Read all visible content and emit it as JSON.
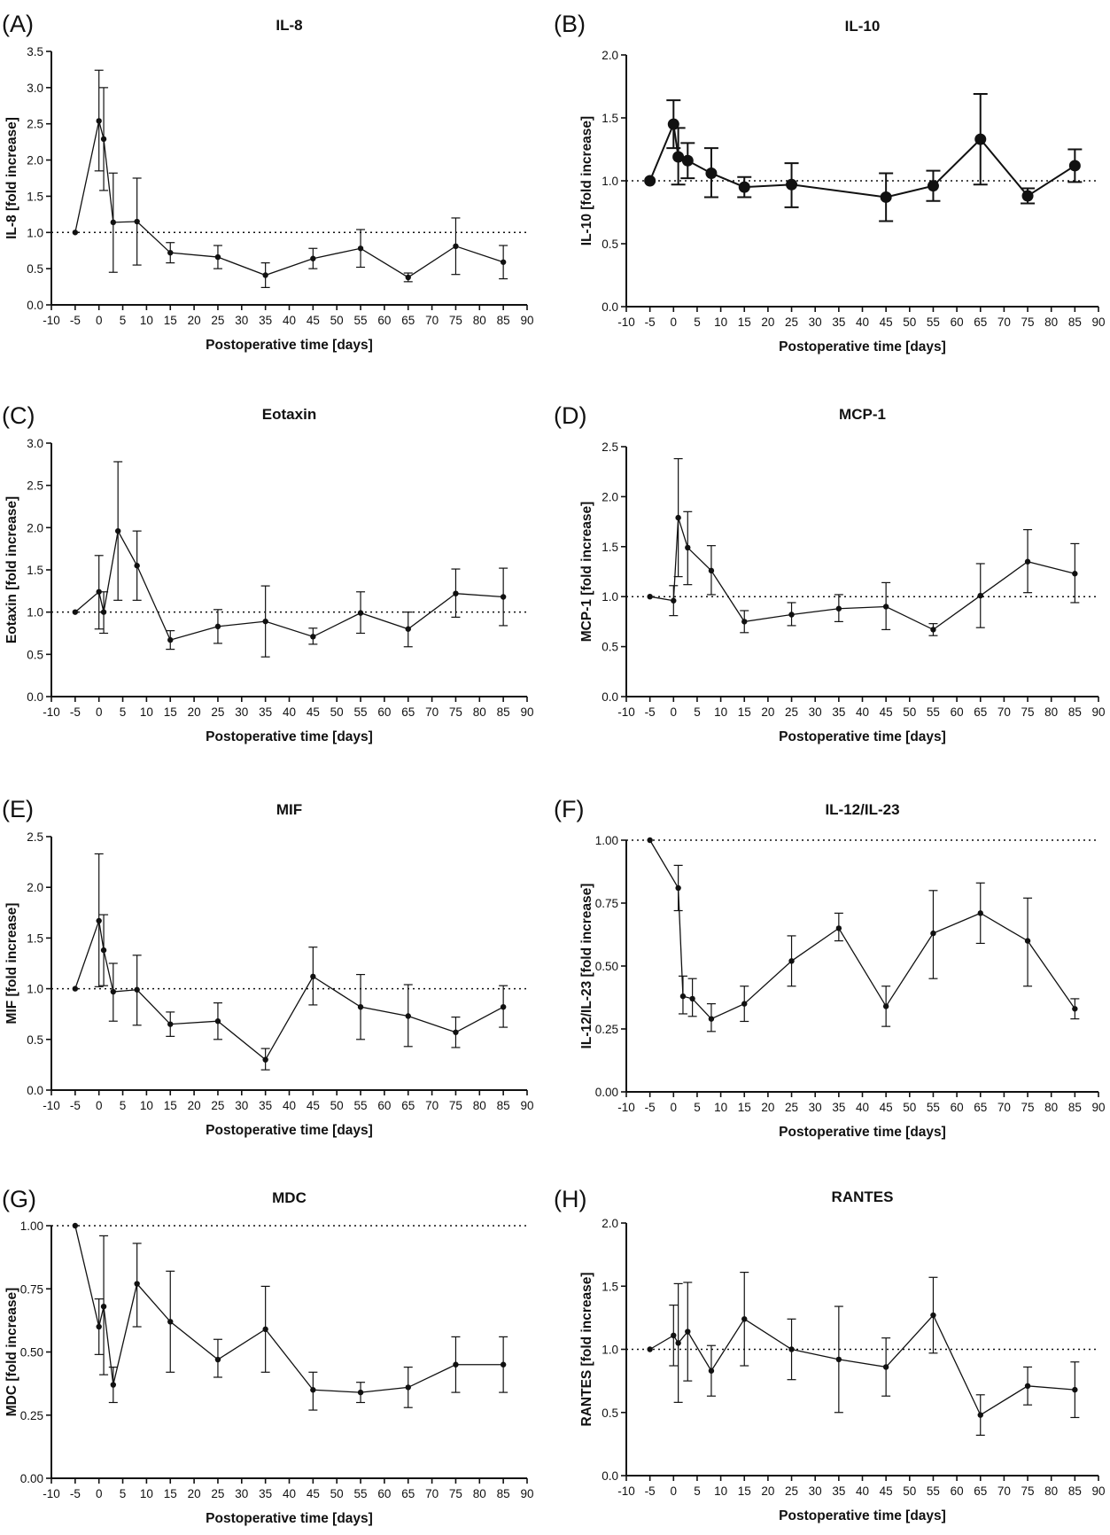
{
  "figure": {
    "background": "#ffffff",
    "line_color": "#111111"
  },
  "chart_data": [
    {
      "panel": "(A)",
      "type": "line",
      "title": "IL-8",
      "xlabel": "Postoperative time [days]",
      "ylabel": "IL-8 [fold increase]",
      "xlim": [
        -10,
        90
      ],
      "xticks": [
        -10,
        -5,
        0,
        5,
        10,
        15,
        20,
        25,
        30,
        35,
        40,
        45,
        50,
        55,
        60,
        65,
        70,
        75,
        80,
        85,
        90
      ],
      "xtick_labels": [
        "-10",
        "-5",
        "0",
        "5",
        "10",
        "15",
        "20",
        "25",
        "30",
        "35",
        "40",
        "45",
        "50",
        "55",
        "60",
        "65",
        "70",
        "75",
        "80",
        "85",
        "90"
      ],
      "ylim": [
        0,
        3.5
      ],
      "yticks": [
        0,
        0.5,
        1,
        1.5,
        2,
        2.5,
        3,
        3.5
      ],
      "ytick_labels": [
        "0.0",
        "0.5",
        "1.0",
        "1.5",
        "2.0",
        "2.5",
        "3.0",
        "3.5"
      ],
      "reference_line": 1.0,
      "grid": false,
      "marker": "small",
      "x": [
        -5,
        0,
        1,
        3,
        8,
        15,
        25,
        35,
        45,
        55,
        65,
        75,
        85
      ],
      "y": [
        1.0,
        2.54,
        2.29,
        1.14,
        1.15,
        0.72,
        0.66,
        0.41,
        0.64,
        0.78,
        0.38,
        0.81,
        0.59
      ],
      "err_low": [
        1.0,
        1.85,
        1.58,
        0.45,
        0.55,
        0.58,
        0.5,
        0.24,
        0.5,
        0.52,
        0.32,
        0.42,
        0.36
      ],
      "err_high": [
        1.0,
        3.24,
        3.0,
        1.82,
        1.75,
        0.86,
        0.82,
        0.58,
        0.78,
        1.04,
        0.44,
        1.2,
        0.82
      ]
    },
    {
      "panel": "(B)",
      "type": "line",
      "title": "IL-10",
      "xlabel": "Postoperative time [days]",
      "ylabel": "IL-10 [fold increase]",
      "xlim": [
        -10,
        90
      ],
      "xticks": [
        -10,
        -5,
        0,
        5,
        10,
        15,
        20,
        25,
        30,
        35,
        40,
        45,
        50,
        55,
        60,
        65,
        70,
        75,
        80,
        85,
        90
      ],
      "xtick_labels": [
        "-10",
        "-5",
        "0",
        "5",
        "10",
        "15",
        "20",
        "25",
        "30",
        "35",
        "40",
        "45",
        "50",
        "55",
        "60",
        "65",
        "70",
        "75",
        "80",
        "85",
        "90"
      ],
      "ylim": [
        0,
        2.0
      ],
      "yticks": [
        0,
        0.5,
        1,
        1.5,
        2
      ],
      "ytick_labels": [
        "0.0",
        "0.5",
        "1.0",
        "1.5",
        "2.0"
      ],
      "reference_line": 1.0,
      "grid": false,
      "marker": "large",
      "x": [
        -5,
        0,
        1,
        3,
        8,
        15,
        25,
        45,
        55,
        65,
        75,
        85
      ],
      "y": [
        1.0,
        1.45,
        1.19,
        1.16,
        1.06,
        0.95,
        0.97,
        0.87,
        0.96,
        1.33,
        0.88,
        1.12
      ],
      "err_low": [
        1.0,
        1.26,
        0.97,
        1.02,
        0.87,
        0.87,
        0.79,
        0.68,
        0.84,
        0.97,
        0.82,
        0.99
      ],
      "err_high": [
        1.0,
        1.64,
        1.42,
        1.3,
        1.26,
        1.03,
        1.14,
        1.06,
        1.08,
        1.69,
        0.94,
        1.25
      ]
    },
    {
      "panel": "(C)",
      "type": "line",
      "title": "Eotaxin",
      "xlabel": "Postoperative time [days]",
      "ylabel": "Eotaxin [fold increase]",
      "xlim": [
        -10,
        90
      ],
      "xticks": [
        -10,
        -5,
        0,
        5,
        10,
        15,
        20,
        25,
        30,
        35,
        40,
        45,
        50,
        55,
        60,
        65,
        70,
        75,
        80,
        85,
        90
      ],
      "xtick_labels": [
        "-10",
        "-5",
        "0",
        "5",
        "10",
        "15",
        "20",
        "25",
        "30",
        "35",
        "40",
        "45",
        "50",
        "55",
        "60",
        "65",
        "70",
        "75",
        "80",
        "85",
        "90"
      ],
      "ylim": [
        0,
        3.0
      ],
      "yticks": [
        0,
        0.5,
        1,
        1.5,
        2,
        2.5,
        3
      ],
      "ytick_labels": [
        "0.0",
        "0.5",
        "1.0",
        "1.5",
        "2.0",
        "2.5",
        "3.0"
      ],
      "reference_line": 1.0,
      "grid": false,
      "marker": "small",
      "x": [
        -5,
        0,
        1,
        4,
        8,
        15,
        25,
        35,
        45,
        55,
        65,
        75,
        85
      ],
      "y": [
        1.0,
        1.24,
        1.0,
        1.96,
        1.55,
        0.67,
        0.83,
        0.89,
        0.71,
        0.99,
        0.8,
        1.22,
        1.18
      ],
      "err_low": [
        1.0,
        0.8,
        0.75,
        1.14,
        1.14,
        0.56,
        0.63,
        0.47,
        0.62,
        0.75,
        0.59,
        0.94,
        0.84
      ],
      "err_high": [
        1.0,
        1.67,
        1.24,
        2.78,
        1.96,
        0.78,
        1.03,
        1.31,
        0.81,
        1.24,
        1.0,
        1.51,
        1.52
      ]
    },
    {
      "panel": "(D)",
      "type": "line",
      "title": "MCP-1",
      "xlabel": "Postoperative time [days]",
      "ylabel": "MCP-1 [fold increase]",
      "xlim": [
        -10,
        90
      ],
      "xticks": [
        -10,
        -5,
        0,
        5,
        10,
        15,
        20,
        25,
        30,
        35,
        40,
        45,
        50,
        55,
        60,
        65,
        70,
        75,
        80,
        85,
        90
      ],
      "xtick_labels": [
        "-10",
        "-5",
        "0",
        "5",
        "10",
        "15",
        "20",
        "25",
        "30",
        "35",
        "40",
        "45",
        "50",
        "55",
        "60",
        "65",
        "70",
        "75",
        "80",
        "85",
        "90"
      ],
      "ylim": [
        0,
        2.5
      ],
      "yticks": [
        0,
        0.5,
        1,
        1.5,
        2,
        2.5
      ],
      "ytick_labels": [
        "0.0",
        "0.5",
        "1.0",
        "1.5",
        "2.0",
        "2.5"
      ],
      "reference_line": 1.0,
      "grid": false,
      "marker": "small",
      "x": [
        -5,
        0,
        1,
        3,
        8,
        15,
        25,
        35,
        45,
        55,
        65,
        75,
        85
      ],
      "y": [
        1.0,
        0.96,
        1.79,
        1.49,
        1.26,
        0.75,
        0.82,
        0.88,
        0.9,
        0.67,
        1.01,
        1.35,
        1.23
      ],
      "err_low": [
        1.0,
        0.81,
        1.2,
        1.12,
        1.02,
        0.64,
        0.71,
        0.75,
        0.67,
        0.61,
        0.69,
        1.04,
        0.94
      ],
      "err_high": [
        1.0,
        1.11,
        2.38,
        1.85,
        1.51,
        0.86,
        0.94,
        1.02,
        1.14,
        0.73,
        1.33,
        1.67,
        1.53
      ]
    },
    {
      "panel": "(E)",
      "type": "line",
      "title": "MIF",
      "xlabel": "Postoperative time [days]",
      "ylabel": "MIF [fold increase]",
      "xlim": [
        -10,
        90
      ],
      "xticks": [
        -10,
        -5,
        0,
        5,
        10,
        15,
        20,
        25,
        30,
        35,
        40,
        45,
        50,
        55,
        60,
        65,
        70,
        75,
        80,
        85,
        90
      ],
      "xtick_labels": [
        "-10",
        "-5",
        "0",
        "5",
        "10",
        "15",
        "20",
        "25",
        "30",
        "35",
        "40",
        "45",
        "50",
        "55",
        "60",
        "65",
        "70",
        "75",
        "80",
        "85",
        "90"
      ],
      "ylim": [
        0,
        2.5
      ],
      "yticks": [
        0,
        0.5,
        1,
        1.5,
        2,
        2.5
      ],
      "ytick_labels": [
        "0.0",
        "0.5",
        "1.0",
        "1.5",
        "2.0",
        "2.5"
      ],
      "reference_line": 1.0,
      "grid": false,
      "marker": "small",
      "x": [
        -5,
        0,
        1,
        3,
        8,
        15,
        25,
        35,
        45,
        55,
        65,
        75,
        85
      ],
      "y": [
        1.0,
        1.67,
        1.38,
        0.97,
        0.99,
        0.65,
        0.68,
        0.3,
        1.12,
        0.82,
        0.73,
        0.57,
        0.82
      ],
      "err_low": [
        1.0,
        1.02,
        1.03,
        0.68,
        0.64,
        0.53,
        0.5,
        0.2,
        0.84,
        0.5,
        0.43,
        0.42,
        0.62
      ],
      "err_high": [
        1.0,
        2.33,
        1.73,
        1.25,
        1.33,
        0.77,
        0.86,
        0.41,
        1.41,
        1.14,
        1.04,
        0.72,
        1.03
      ]
    },
    {
      "panel": "(F)",
      "type": "line",
      "title": "IL-12/IL-23",
      "xlabel": "Postoperative time [days]",
      "ylabel": "IL-12/IL-23 [fold increase]",
      "xlim": [
        -10,
        90
      ],
      "xticks": [
        -10,
        -5,
        0,
        5,
        10,
        15,
        20,
        25,
        30,
        35,
        40,
        45,
        50,
        55,
        60,
        65,
        70,
        75,
        80,
        85,
        90
      ],
      "xtick_labels": [
        "-10",
        "-5",
        "0",
        "5",
        "10",
        "15",
        "20",
        "25",
        "30",
        "35",
        "40",
        "45",
        "50",
        "55",
        "60",
        "65",
        "70",
        "75",
        "80",
        "85",
        "90"
      ],
      "ylim": [
        0,
        1.0
      ],
      "yticks": [
        0,
        0.25,
        0.5,
        0.75,
        1
      ],
      "ytick_labels": [
        "0.00",
        "0.25",
        "0.50",
        "0.75",
        "1.00"
      ],
      "reference_line": 1.0,
      "grid": false,
      "marker": "small",
      "x": [
        -5,
        1,
        2,
        4,
        8,
        15,
        25,
        35,
        45,
        55,
        65,
        75,
        85
      ],
      "y": [
        1.0,
        0.81,
        0.38,
        0.37,
        0.29,
        0.35,
        0.52,
        0.65,
        0.34,
        0.63,
        0.71,
        0.6,
        0.33
      ],
      "err_low": [
        1.0,
        0.72,
        0.31,
        0.3,
        0.24,
        0.28,
        0.42,
        0.6,
        0.26,
        0.45,
        0.59,
        0.42,
        0.29
      ],
      "err_high": [
        1.0,
        0.9,
        0.46,
        0.45,
        0.35,
        0.42,
        0.62,
        0.71,
        0.42,
        0.8,
        0.83,
        0.77,
        0.37
      ]
    },
    {
      "panel": "(G)",
      "type": "line",
      "title": "MDC",
      "xlabel": "Postoperative time [days]",
      "ylabel": "MDC [fold increase]",
      "xlim": [
        -10,
        90
      ],
      "xticks": [
        -10,
        -5,
        0,
        5,
        10,
        15,
        20,
        25,
        30,
        35,
        40,
        45,
        50,
        55,
        60,
        65,
        70,
        75,
        80,
        85,
        90
      ],
      "xtick_labels": [
        "-10",
        "-5",
        "0",
        "5",
        "10",
        "15",
        "20",
        "25",
        "30",
        "35",
        "40",
        "45",
        "50",
        "55",
        "60",
        "65",
        "70",
        "75",
        "80",
        "85",
        "90"
      ],
      "ylim": [
        0,
        1.0
      ],
      "yticks": [
        0,
        0.25,
        0.5,
        0.75,
        1
      ],
      "ytick_labels": [
        "0.00",
        "0.25",
        "0.50",
        "0.75",
        "1.00"
      ],
      "reference_line": 1.0,
      "grid": false,
      "marker": "small",
      "x": [
        -5,
        0,
        1,
        3,
        8,
        15,
        25,
        35,
        45,
        55,
        65,
        75,
        85
      ],
      "y": [
        1.0,
        0.6,
        0.68,
        0.37,
        0.77,
        0.62,
        0.47,
        0.59,
        0.35,
        0.34,
        0.36,
        0.45,
        0.45
      ],
      "err_low": [
        1.0,
        0.49,
        0.41,
        0.3,
        0.6,
        0.42,
        0.4,
        0.42,
        0.27,
        0.3,
        0.28,
        0.34,
        0.34
      ],
      "err_high": [
        1.0,
        0.71,
        0.96,
        0.44,
        0.93,
        0.82,
        0.55,
        0.76,
        0.42,
        0.38,
        0.44,
        0.56,
        0.56
      ]
    },
    {
      "panel": "(H)",
      "type": "line",
      "title": "RANTES",
      "xlabel": "Postoperative time [days]",
      "ylabel": "RANTES [fold increase]",
      "xlim": [
        -10,
        90
      ],
      "xticks": [
        -10,
        -5,
        0,
        5,
        10,
        15,
        20,
        25,
        30,
        35,
        40,
        45,
        50,
        55,
        60,
        65,
        70,
        75,
        80,
        85,
        90
      ],
      "xtick_labels": [
        "-10",
        "-5",
        "0",
        "5",
        "10",
        "15",
        "20",
        "25",
        "30",
        "35",
        "40",
        "45",
        "50",
        "55",
        "60",
        "65",
        "70",
        "75",
        "80",
        "85",
        "90"
      ],
      "ylim": [
        0,
        2.0
      ],
      "yticks": [
        0,
        0.5,
        1,
        1.5,
        2
      ],
      "ytick_labels": [
        "0.0",
        "0.5",
        "1.0",
        "1.5",
        "2.0"
      ],
      "reference_line": 1.0,
      "grid": false,
      "marker": "small",
      "x": [
        -5,
        0,
        1,
        3,
        8,
        15,
        25,
        35,
        45,
        55,
        65,
        75,
        85
      ],
      "y": [
        1.0,
        1.11,
        1.05,
        1.14,
        0.83,
        1.24,
        1.0,
        0.92,
        0.86,
        1.27,
        0.48,
        0.71,
        0.68
      ],
      "err_low": [
        1.0,
        0.87,
        0.58,
        0.75,
        0.63,
        0.87,
        0.76,
        0.5,
        0.63,
        0.97,
        0.32,
        0.56,
        0.46
      ],
      "err_high": [
        1.0,
        1.35,
        1.52,
        1.53,
        1.03,
        1.61,
        1.24,
        1.34,
        1.09,
        1.57,
        0.64,
        0.86,
        0.9
      ]
    }
  ]
}
